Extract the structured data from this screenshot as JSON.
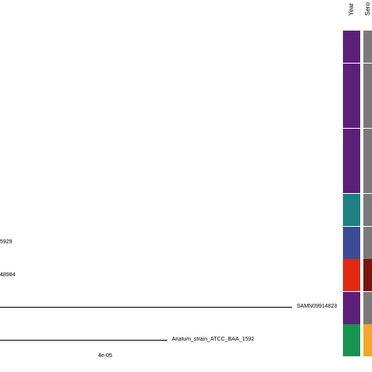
{
  "tree": {
    "tips": [
      {
        "label": "5929"
      },
      {
        "label": "48984"
      },
      {
        "label": "SAMN09914823"
      },
      {
        "label": "Anatum_strain_ATCC_BAA_1592"
      }
    ],
    "scale_label": "4e-05"
  },
  "heatmap": {
    "headers": [
      "Year",
      "Sero"
    ],
    "columns": [
      [
        "#5c1f7a",
        "#5c1f7a",
        "#5c1f7a",
        "#5c1f7a",
        "#5c1f7a",
        "#1e8080",
        "#3d4a94",
        "#e12a12",
        "#5c1f7a",
        "#1a9250"
      ],
      [
        "#7a7a7a",
        "#7a7a7a",
        "#7a7a7a",
        "#7a7a7a",
        "#7a7a7a",
        "#7a7a7a",
        "#7a7a7a",
        "#7b1410",
        "#7a7a7a",
        "#f5a52a"
      ]
    ]
  }
}
